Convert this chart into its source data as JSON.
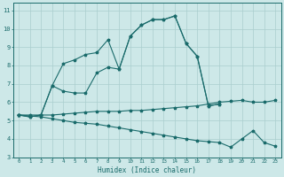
{
  "xlabel": "Humidex (Indice chaleur)",
  "bg_color": "#cde8e8",
  "grid_color": "#aacece",
  "line_color": "#1a6b6b",
  "xlim": [
    -0.5,
    23.5
  ],
  "ylim": [
    3,
    11.4
  ],
  "xticks": [
    0,
    1,
    2,
    3,
    4,
    5,
    6,
    7,
    8,
    9,
    10,
    11,
    12,
    13,
    14,
    15,
    16,
    17,
    18,
    19,
    20,
    21,
    22,
    23
  ],
  "yticks": [
    3,
    4,
    5,
    6,
    7,
    8,
    9,
    10,
    11
  ],
  "line1_x": [
    0,
    1,
    2,
    3,
    4,
    5,
    6,
    7,
    8,
    9,
    10,
    11,
    12,
    13,
    14,
    15,
    16,
    17,
    18
  ],
  "line1_y": [
    5.3,
    5.2,
    5.3,
    6.9,
    8.1,
    8.3,
    8.6,
    8.7,
    9.4,
    7.8,
    9.6,
    10.2,
    10.5,
    10.5,
    10.7,
    9.2,
    8.5,
    5.8,
    5.9
  ],
  "line2_x": [
    0,
    1,
    2,
    3,
    4,
    5,
    6,
    7,
    8,
    9,
    10,
    11,
    12,
    13,
    14,
    15,
    16,
    17,
    18
  ],
  "line2_y": [
    5.3,
    5.2,
    5.3,
    6.9,
    6.6,
    6.5,
    6.5,
    7.6,
    7.9,
    7.8,
    9.6,
    10.2,
    10.5,
    10.5,
    10.7,
    9.2,
    8.5,
    5.8,
    5.9
  ],
  "line3_x": [
    0,
    1,
    2,
    3,
    4,
    5,
    6,
    7,
    8,
    9,
    10,
    11,
    12,
    13,
    14,
    15,
    16,
    17,
    18,
    19,
    20,
    21,
    22,
    23
  ],
  "line3_y": [
    5.3,
    5.3,
    5.3,
    5.3,
    5.35,
    5.4,
    5.45,
    5.5,
    5.5,
    5.5,
    5.55,
    5.55,
    5.6,
    5.65,
    5.7,
    5.75,
    5.8,
    5.9,
    6.0,
    6.05,
    6.1,
    6.0,
    6.0,
    6.1
  ],
  "line4_x": [
    0,
    1,
    2,
    3,
    4,
    5,
    6,
    7,
    8,
    9,
    10,
    11,
    12,
    13,
    14,
    15,
    16,
    17,
    18,
    19,
    20,
    21,
    22,
    23
  ],
  "line4_y": [
    5.3,
    5.25,
    5.2,
    5.1,
    5.0,
    4.9,
    4.85,
    4.8,
    4.7,
    4.6,
    4.5,
    4.4,
    4.3,
    4.2,
    4.1,
    4.0,
    3.9,
    3.85,
    3.8,
    3.55,
    4.0,
    4.45,
    3.8,
    3.6
  ]
}
